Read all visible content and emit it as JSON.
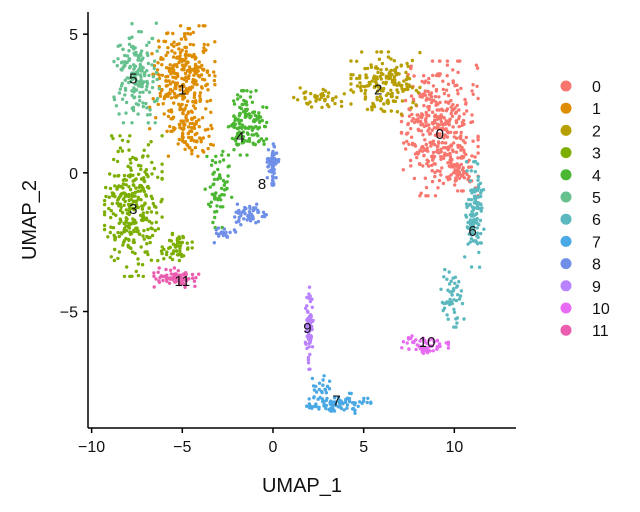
{
  "chart_data": {
    "type": "scatter",
    "title": "",
    "xlabel": "UMAP_1",
    "ylabel": "UMAP_2",
    "xlim": [
      -10.2,
      13.4
    ],
    "ylim": [
      -9.2,
      5.8
    ],
    "x_ticks": [
      {
        "value": -10,
        "label": "−10"
      },
      {
        "value": -5,
        "label": "−5"
      },
      {
        "value": 0,
        "label": "0"
      },
      {
        "value": 5,
        "label": "5"
      },
      {
        "value": 10,
        "label": "10"
      }
    ],
    "y_ticks": [
      {
        "value": 5,
        "label": "5"
      },
      {
        "value": 0,
        "label": "0"
      },
      {
        "value": -5,
        "label": "−5"
      }
    ],
    "grid": false,
    "legend_position": "right",
    "clusters": [
      {
        "name": "0",
        "color": "#F8766D",
        "label_at": [
          9.2,
          1.4
        ],
        "regions": [
          {
            "cx": 9.2,
            "cy": 1.6,
            "rx": 2.0,
            "ry": 2.3,
            "n": 380
          },
          {
            "cx": 10.3,
            "cy": 0.3,
            "rx": 0.8,
            "ry": 0.9,
            "n": 60
          }
        ]
      },
      {
        "name": "1",
        "color": "#DE8C00",
        "label_at": [
          -5.0,
          3.0
        ],
        "regions": [
          {
            "cx": -5.0,
            "cy": 3.4,
            "rx": 1.7,
            "ry": 1.8,
            "n": 300
          },
          {
            "cx": -4.5,
            "cy": 1.5,
            "rx": 1.2,
            "ry": 1.0,
            "n": 80
          }
        ]
      },
      {
        "name": "2",
        "color": "#B79F00",
        "label_at": [
          5.8,
          3.0
        ],
        "regions": [
          {
            "cx": 6.2,
            "cy": 3.2,
            "rx": 1.8,
            "ry": 1.1,
            "n": 170
          },
          {
            "cx": 2.5,
            "cy": 2.7,
            "rx": 1.6,
            "ry": 0.35,
            "n": 40
          }
        ]
      },
      {
        "name": "3",
        "color": "#7CAE00",
        "label_at": [
          -7.7,
          -1.3
        ],
        "regions": [
          {
            "cx": -7.7,
            "cy": -1.2,
            "rx": 1.5,
            "ry": 2.4,
            "n": 300
          },
          {
            "cx": -5.3,
            "cy": -2.7,
            "rx": 0.8,
            "ry": 0.6,
            "n": 50
          }
        ]
      },
      {
        "name": "4",
        "color": "#4CB733",
        "label_at": [
          -1.8,
          1.3
        ],
        "regions": [
          {
            "cx": -1.4,
            "cy": 1.8,
            "rx": 1.0,
            "ry": 1.1,
            "n": 140
          },
          {
            "cx": -3.0,
            "cy": -0.6,
            "rx": 0.7,
            "ry": 1.3,
            "n": 60
          }
        ]
      },
      {
        "name": "5",
        "color": "#66C18F",
        "label_at": [
          -7.7,
          3.4
        ],
        "regions": [
          {
            "cx": -7.5,
            "cy": 3.6,
            "rx": 1.2,
            "ry": 1.7,
            "n": 170
          }
        ]
      },
      {
        "name": "6",
        "color": "#5BB8BE",
        "label_at": [
          11.0,
          -2.1
        ],
        "regions": [
          {
            "cx": 11.1,
            "cy": -1.5,
            "rx": 0.5,
            "ry": 1.8,
            "n": 120
          },
          {
            "cx": 9.9,
            "cy": -4.4,
            "rx": 0.6,
            "ry": 1.1,
            "n": 50
          }
        ]
      },
      {
        "name": "7",
        "color": "#4AA9E5",
        "label_at": [
          3.5,
          -8.2
        ],
        "regions": [
          {
            "cx": 3.6,
            "cy": -8.3,
            "rx": 1.7,
            "ry": 0.35,
            "n": 90
          },
          {
            "cx": 2.6,
            "cy": -7.7,
            "rx": 0.5,
            "ry": 0.5,
            "n": 20
          }
        ]
      },
      {
        "name": "8",
        "color": "#6F8FE8",
        "label_at": [
          -0.6,
          -0.4
        ],
        "regions": [
          {
            "cx": 0.0,
            "cy": 0.3,
            "rx": 0.3,
            "ry": 0.7,
            "n": 60
          },
          {
            "cx": -1.3,
            "cy": -1.5,
            "rx": 0.9,
            "ry": 0.35,
            "n": 50
          },
          {
            "cx": -2.8,
            "cy": -2.2,
            "rx": 0.7,
            "ry": 0.3,
            "n": 20
          }
        ]
      },
      {
        "name": "9",
        "color": "#B983FF",
        "label_at": [
          1.9,
          -5.6
        ],
        "regions": [
          {
            "cx": 2.0,
            "cy": -5.6,
            "rx": 0.2,
            "ry": 1.4,
            "n": 80
          }
        ]
      },
      {
        "name": "10",
        "color": "#E76BF3",
        "label_at": [
          8.5,
          -6.1
        ],
        "regions": [
          {
            "cx": 8.3,
            "cy": -6.2,
            "rx": 1.3,
            "ry": 0.3,
            "n": 60
          }
        ]
      },
      {
        "name": "11",
        "color": "#EA5DAF",
        "label_at": [
          -5.0,
          -3.9
        ],
        "regions": [
          {
            "cx": -5.3,
            "cy": -3.8,
            "rx": 1.2,
            "ry": 0.35,
            "n": 70
          }
        ]
      }
    ]
  }
}
